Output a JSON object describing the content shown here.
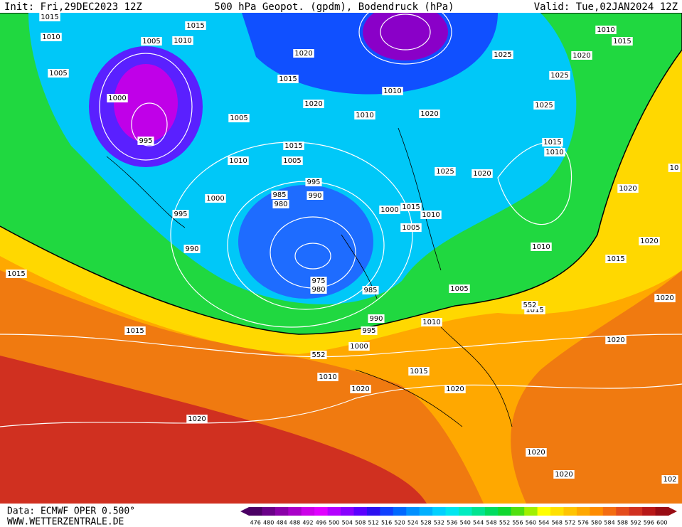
{
  "header": {
    "init": "Init: Fri,29DEC2023 12Z",
    "title": "500 hPa Geopot. (gpdm), Bodendruck (hPa)",
    "valid": "Valid: Tue,02JAN2024 12Z"
  },
  "footer": {
    "source": "Data: ECMWF OPER 0.500°",
    "site": "WWW.WETTERZENTRALE.DE"
  },
  "isobar_labels": [
    1015,
    1010,
    1005,
    1010,
    1015,
    1005,
    1000,
    995,
    1020,
    1015,
    1020,
    1005,
    1015,
    1010,
    1005,
    1010,
    1010,
    1020,
    995,
    990,
    985,
    980,
    1000,
    995,
    990,
    1000,
    1015,
    1010,
    1005,
    1025,
    1020,
    1015,
    1010,
    1025,
    1025,
    1025,
    1020,
    1010,
    1015,
    1020,
    1020,
    1015,
    1010,
    1005,
    975,
    980,
    985,
    990,
    995,
    1010,
    1015,
    1000,
    1015,
    1015,
    1010,
    1015,
    1020,
    1020,
    1020,
    1020,
    1020,
    1020,
    1020,
    552,
    552,
    10,
    102
  ],
  "colorbar": {
    "labels": [
      476,
      480,
      484,
      488,
      492,
      496,
      500,
      504,
      508,
      512,
      516,
      520,
      524,
      528,
      532,
      536,
      540,
      544,
      548,
      552,
      556,
      560,
      564,
      568,
      572,
      576,
      580,
      584,
      588,
      592,
      596,
      600
    ],
    "colors": [
      "#4b0064",
      "#6a0088",
      "#8a00a8",
      "#aa00c8",
      "#cc00e8",
      "#e000ff",
      "#b400ff",
      "#8800ff",
      "#5a00ff",
      "#2c10f0",
      "#1040ff",
      "#0068ff",
      "#0090ff",
      "#00b0ff",
      "#00d0ff",
      "#00e6f0",
      "#00ecc0",
      "#00e490",
      "#00dc60",
      "#10d830",
      "#50e010",
      "#a0f000",
      "#ffff00",
      "#ffe000",
      "#ffc400",
      "#ffa800",
      "#ff8c00",
      "#f46c10",
      "#e44c1c",
      "#d03020",
      "#b81818",
      "#980c14"
    ]
  }
}
